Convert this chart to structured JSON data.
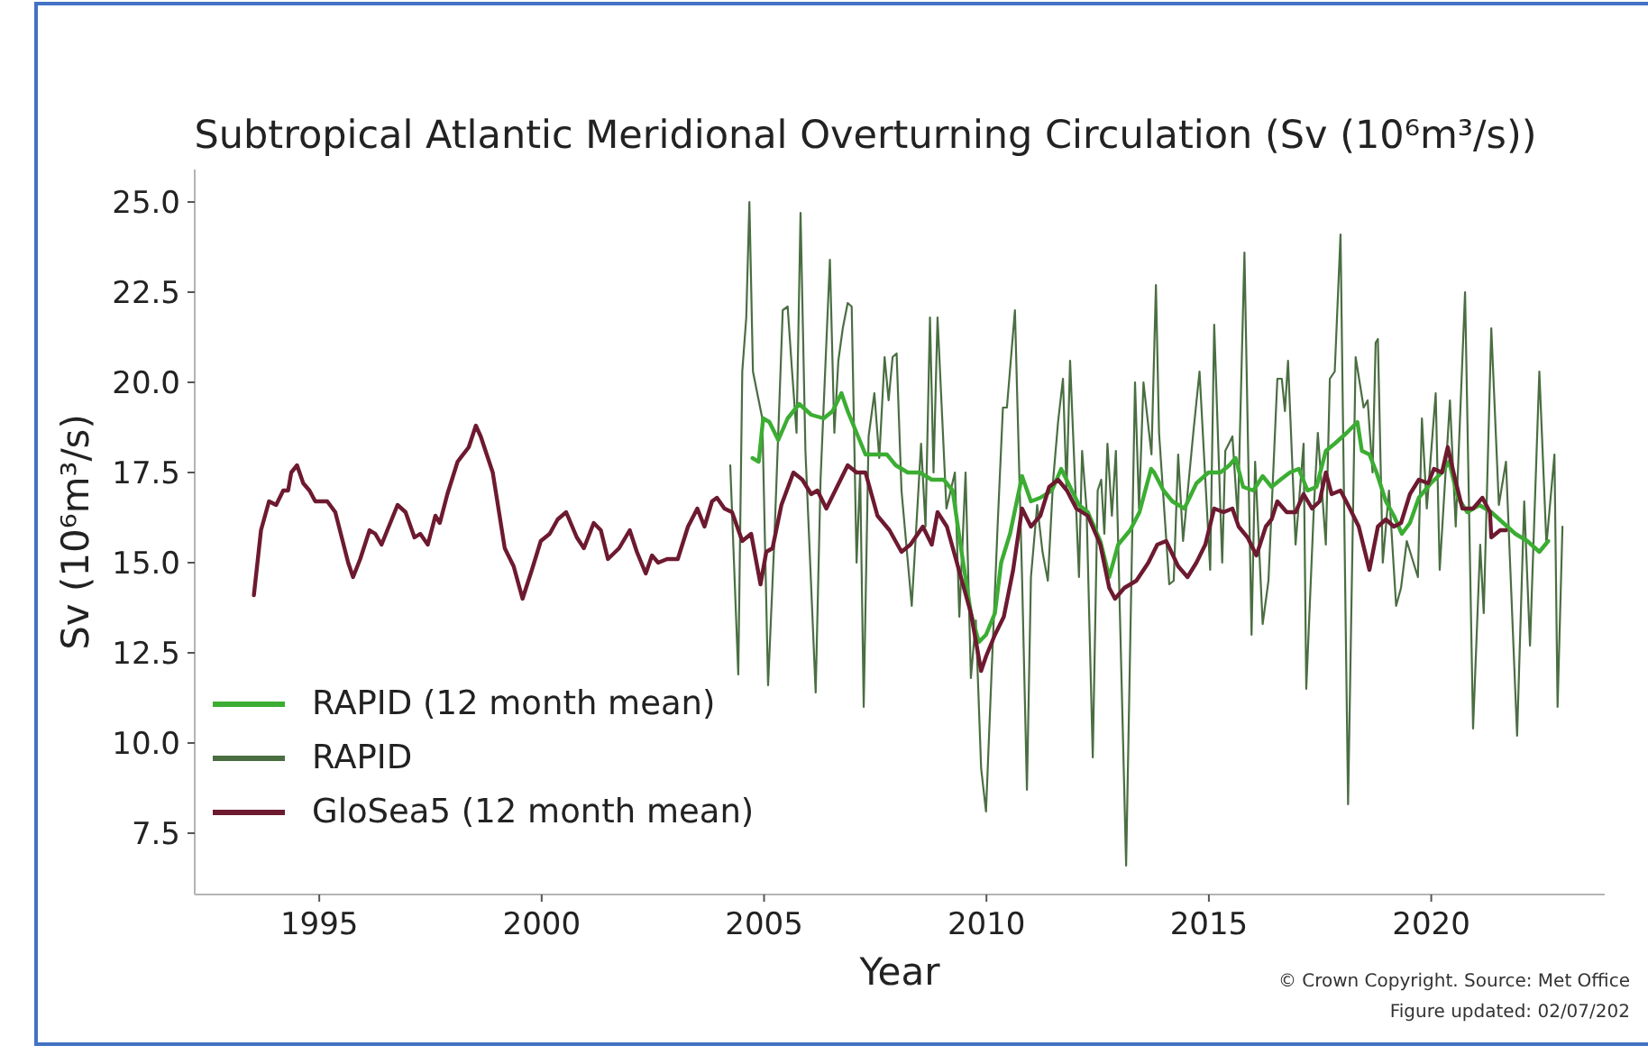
{
  "chart_data": {
    "type": "line",
    "title": "Subtropical Atlantic Meridional Overturning Circulation (Sv (10⁶m³/s))",
    "xlabel": "Year",
    "ylabel": "Sv (10⁶m³/s)",
    "annotations": [
      "© Crown Copyright. Source: Met Office",
      "Figure updated: 02/07/202"
    ],
    "xlim": [
      1992.2,
      2023.9
    ],
    "xticks": [
      1995,
      2000,
      2005,
      2010,
      2015,
      2020
    ],
    "ylim": [
      5.8,
      25.9
    ],
    "yticks": [
      7.5,
      {
        "value": 10,
        "label": "10.0"
      },
      12.5,
      {
        "value": 15,
        "label": "15.0"
      },
      17.5,
      {
        "value": 20,
        "label": "20.0"
      },
      22.5,
      {
        "value": 25,
        "label": "25.0"
      }
    ],
    "legend": "bottom left",
    "marker": "none",
    "series": [
      {
        "name": "RAPID (12 month mean)",
        "color": "#3cad33",
        "x": [
          2004.74,
          2004.88,
          2004.98,
          2005.12,
          2005.32,
          2005.53,
          2005.79,
          2006.06,
          2006.34,
          2006.54,
          2006.74,
          2006.88,
          2007.08,
          2007.28,
          2007.55,
          2007.76,
          2007.96,
          2008.23,
          2008.5,
          2008.77,
          2009.04,
          2009.24,
          2009.44,
          2009.65,
          2009.83,
          2009.99,
          2010.19,
          2010.33,
          2010.53,
          2010.8,
          2011.0,
          2011.21,
          2011.47,
          2011.68,
          2011.88,
          2012.08,
          2012.28,
          2012.56,
          2012.76,
          2012.96,
          2013.23,
          2013.44,
          2013.7,
          2013.77,
          2013.98,
          2014.18,
          2014.45,
          2014.72,
          2014.99,
          2015.26,
          2015.46,
          2015.6,
          2015.77,
          2016.0,
          2016.21,
          2016.41,
          2016.61,
          2016.82,
          2017.02,
          2017.22,
          2017.42,
          2017.63,
          2017.83,
          2018.1,
          2018.34,
          2018.44,
          2018.61,
          2018.77,
          2018.98,
          2019.16,
          2019.34,
          2019.52,
          2019.72,
          2019.99,
          2020.24,
          2020.4,
          2020.6,
          2020.81,
          2021.08,
          2021.35,
          2021.62,
          2021.89,
          2022.16,
          2022.43,
          2022.63
        ],
        "values": [
          17.9,
          17.8,
          19.0,
          18.9,
          18.4,
          19.0,
          19.4,
          19.1,
          19.0,
          19.2,
          19.7,
          19.2,
          18.6,
          18.0,
          18.0,
          18.0,
          17.7,
          17.5,
          17.5,
          17.3,
          17.3,
          17.0,
          15.3,
          13.6,
          12.8,
          13.0,
          13.6,
          15.0,
          15.8,
          17.4,
          16.7,
          16.8,
          17.0,
          17.6,
          17.1,
          16.6,
          16.4,
          15.6,
          14.6,
          15.5,
          15.9,
          16.4,
          17.6,
          17.5,
          17.0,
          16.7,
          16.5,
          17.2,
          17.5,
          17.5,
          17.7,
          17.9,
          17.1,
          17.0,
          17.4,
          17.1,
          17.3,
          17.5,
          17.6,
          17.0,
          17.1,
          18.1,
          18.3,
          18.6,
          18.9,
          18.1,
          18.0,
          17.5,
          16.7,
          16.3,
          15.8,
          16.1,
          16.8,
          17.2,
          17.5,
          17.8,
          16.8,
          16.4,
          16.6,
          16.4,
          16.1,
          15.8,
          15.6,
          15.3,
          15.6
        ]
      },
      {
        "name": "RAPID",
        "color": "#4a6e42",
        "x": [
          2004.24,
          2004.42,
          2004.51,
          2004.6,
          2004.67,
          2004.75,
          2004.96,
          2005.09,
          2005.23,
          2005.42,
          2005.53,
          2005.63,
          2005.73,
          2005.82,
          2005.93,
          2006.16,
          2006.27,
          2006.38,
          2006.48,
          2006.58,
          2006.67,
          2006.77,
          2006.88,
          2006.97,
          2007.08,
          2007.16,
          2007.24,
          2007.35,
          2007.48,
          2007.59,
          2007.71,
          2007.8,
          2007.89,
          2007.98,
          2008.09,
          2008.32,
          2008.53,
          2008.63,
          2008.73,
          2008.81,
          2008.9,
          2009.1,
          2009.29,
          2009.39,
          2009.53,
          2009.65,
          2009.76,
          2009.88,
          2009.99,
          2010.1,
          2010.25,
          2010.37,
          2010.46,
          2010.64,
          2010.8,
          2010.91,
          2011.0,
          2011.14,
          2011.26,
          2011.38,
          2011.5,
          2011.61,
          2011.72,
          2011.8,
          2011.88,
          2012.08,
          2012.15,
          2012.25,
          2012.39,
          2012.5,
          2012.58,
          2012.65,
          2012.72,
          2012.82,
          2012.91,
          2013.14,
          2013.34,
          2013.43,
          2013.53,
          2013.71,
          2013.81,
          2013.88,
          2014.11,
          2014.21,
          2014.31,
          2014.42,
          2014.65,
          2014.79,
          2015.03,
          2015.12,
          2015.3,
          2015.37,
          2015.53,
          2015.65,
          2015.8,
          2015.96,
          2016.04,
          2016.21,
          2016.34,
          2016.54,
          2016.64,
          2016.71,
          2016.78,
          2016.95,
          2017.13,
          2017.19,
          2017.36,
          2017.45,
          2017.63,
          2017.72,
          2017.83,
          2017.96,
          2018.13,
          2018.3,
          2018.48,
          2018.57,
          2018.68,
          2018.75,
          2018.8,
          2018.91,
          2019.05,
          2019.21,
          2019.32,
          2019.45,
          2019.7,
          2019.79,
          2019.9,
          2020.1,
          2020.19,
          2020.42,
          2020.55,
          2020.76,
          2020.94,
          2021.1,
          2021.18,
          2021.35,
          2021.52,
          2021.68,
          2021.93,
          2022.09,
          2022.22,
          2022.43,
          2022.59,
          2022.77,
          2022.84,
          2022.95
        ],
        "values": [
          17.7,
          11.9,
          20.3,
          21.8,
          25.0,
          20.3,
          19.0,
          11.6,
          15.6,
          22.0,
          22.1,
          20.3,
          18.6,
          24.7,
          18.1,
          11.4,
          17.3,
          20.5,
          23.4,
          18.6,
          20.6,
          21.5,
          22.2,
          22.1,
          15.0,
          17.5,
          11.0,
          18.5,
          19.7,
          17.9,
          20.7,
          19.5,
          20.7,
          20.8,
          17.0,
          13.8,
          18.3,
          16.0,
          21.8,
          17.5,
          21.8,
          16.5,
          17.5,
          13.5,
          17.5,
          11.8,
          13.4,
          9.3,
          8.1,
          11.5,
          16.0,
          19.3,
          19.3,
          22.0,
          14.6,
          8.7,
          14.6,
          16.6,
          15.3,
          14.5,
          17.3,
          18.9,
          20.1,
          17.0,
          20.6,
          14.6,
          18.1,
          16.5,
          9.6,
          17.0,
          17.3,
          15.8,
          18.3,
          16.3,
          18.1,
          6.6,
          20.0,
          16.5,
          20.0,
          18.0,
          22.7,
          18.6,
          14.4,
          14.5,
          18.0,
          15.6,
          18.6,
          20.3,
          14.8,
          21.6,
          15.0,
          18.1,
          18.5,
          16.2,
          23.6,
          13.0,
          17.8,
          13.3,
          14.5,
          20.1,
          20.1,
          19.2,
          20.6,
          15.5,
          18.3,
          11.5,
          16.5,
          18.6,
          15.5,
          20.1,
          20.3,
          24.1,
          8.3,
          20.7,
          19.3,
          19.5,
          17.5,
          21.1,
          21.2,
          15.0,
          17.0,
          13.8,
          14.3,
          15.6,
          14.6,
          19.0,
          16.5,
          19.7,
          14.8,
          19.5,
          16.0,
          22.5,
          10.4,
          15.5,
          13.6,
          21.5,
          16.6,
          17.8,
          10.2,
          16.7,
          12.7,
          20.3,
          15.5,
          18.0,
          11.0,
          16.0
        ]
      },
      {
        "name": "GloSea5 (12 month mean)",
        "color": "#6d1a30",
        "x": [
          1993.53,
          1993.69,
          1993.87,
          1994.03,
          1994.19,
          1994.3,
          1994.37,
          1994.5,
          1994.64,
          1994.78,
          1994.91,
          1995.18,
          1995.36,
          1995.65,
          1995.76,
          1995.92,
          1996.13,
          1996.26,
          1996.4,
          1996.53,
          1996.76,
          1996.94,
          1997.14,
          1997.27,
          1997.44,
          1997.61,
          1997.71,
          1997.88,
          1998.11,
          1998.36,
          1998.52,
          1998.63,
          1998.9,
          1999.17,
          1999.37,
          1999.57,
          1999.78,
          1999.98,
          2000.18,
          2000.36,
          2000.55,
          2000.79,
          2000.95,
          2001.17,
          2001.33,
          2001.49,
          2001.74,
          2001.98,
          2002.14,
          2002.34,
          2002.48,
          2002.62,
          2002.82,
          2003.06,
          2003.29,
          2003.5,
          2003.66,
          2003.83,
          2003.94,
          2004.11,
          2004.28,
          2004.51,
          2004.71,
          2004.92,
          2005.05,
          2005.19,
          2005.39,
          2005.66,
          2005.86,
          2006.06,
          2006.2,
          2006.4,
          2006.6,
          2006.88,
          2007.08,
          2007.28,
          2007.55,
          2007.82,
          2008.09,
          2008.29,
          2008.57,
          2008.77,
          2008.9,
          2009.11,
          2009.38,
          2009.65,
          2009.88,
          2009.99,
          2010.19,
          2010.39,
          2010.6,
          2010.8,
          2011.0,
          2011.21,
          2011.41,
          2011.61,
          2011.81,
          2012.02,
          2012.28,
          2012.56,
          2012.76,
          2012.89,
          2013.1,
          2013.37,
          2013.64,
          2013.84,
          2014.04,
          2014.31,
          2014.52,
          2014.72,
          2014.92,
          2015.12,
          2015.33,
          2015.53,
          2015.67,
          2015.87,
          2016.07,
          2016.28,
          2016.41,
          2016.54,
          2016.75,
          2016.95,
          2017.13,
          2017.32,
          2017.49,
          2017.63,
          2017.76,
          2017.96,
          2018.17,
          2018.37,
          2018.61,
          2018.8,
          2018.98,
          2019.16,
          2019.32,
          2019.52,
          2019.72,
          2019.93,
          2020.06,
          2020.24,
          2020.37,
          2020.54,
          2020.7,
          2020.94,
          2021.15,
          2021.32,
          2021.35,
          2021.55,
          2021.68
        ],
        "values": [
          14.1,
          15.9,
          16.7,
          16.6,
          17.0,
          17.0,
          17.5,
          17.7,
          17.2,
          17.0,
          16.7,
          16.7,
          16.4,
          15.0,
          14.6,
          15.1,
          15.9,
          15.8,
          15.5,
          15.9,
          16.6,
          16.4,
          15.7,
          15.8,
          15.5,
          16.3,
          16.1,
          16.9,
          17.8,
          18.2,
          18.8,
          18.5,
          17.5,
          15.4,
          14.9,
          14.0,
          14.8,
          15.6,
          15.8,
          16.2,
          16.4,
          15.7,
          15.4,
          16.1,
          15.9,
          15.1,
          15.4,
          15.9,
          15.3,
          14.7,
          15.2,
          15.0,
          15.1,
          15.1,
          16.0,
          16.5,
          16.0,
          16.7,
          16.8,
          16.5,
          16.4,
          15.6,
          15.8,
          14.4,
          15.3,
          15.4,
          16.6,
          17.5,
          17.3,
          16.9,
          17.0,
          16.5,
          17.0,
          17.7,
          17.5,
          17.5,
          16.3,
          15.9,
          15.3,
          15.5,
          16.0,
          15.5,
          16.4,
          16.0,
          14.8,
          13.6,
          12.0,
          12.4,
          13.0,
          13.5,
          14.8,
          16.5,
          16.0,
          16.3,
          17.1,
          17.3,
          17.0,
          16.5,
          16.3,
          15.5,
          14.3,
          14.0,
          14.3,
          14.5,
          15.0,
          15.5,
          15.6,
          14.9,
          14.6,
          15.0,
          15.5,
          16.5,
          16.4,
          16.5,
          16.0,
          15.7,
          15.2,
          16.0,
          16.2,
          16.7,
          16.4,
          16.4,
          16.9,
          16.5,
          16.7,
          17.5,
          16.9,
          17.0,
          16.5,
          16.0,
          14.8,
          16.0,
          16.2,
          16.0,
          16.1,
          16.9,
          17.3,
          17.2,
          17.6,
          17.5,
          18.2,
          17.3,
          16.5,
          16.5,
          16.8,
          16.4,
          15.7,
          15.9,
          15.9
        ]
      }
    ]
  }
}
